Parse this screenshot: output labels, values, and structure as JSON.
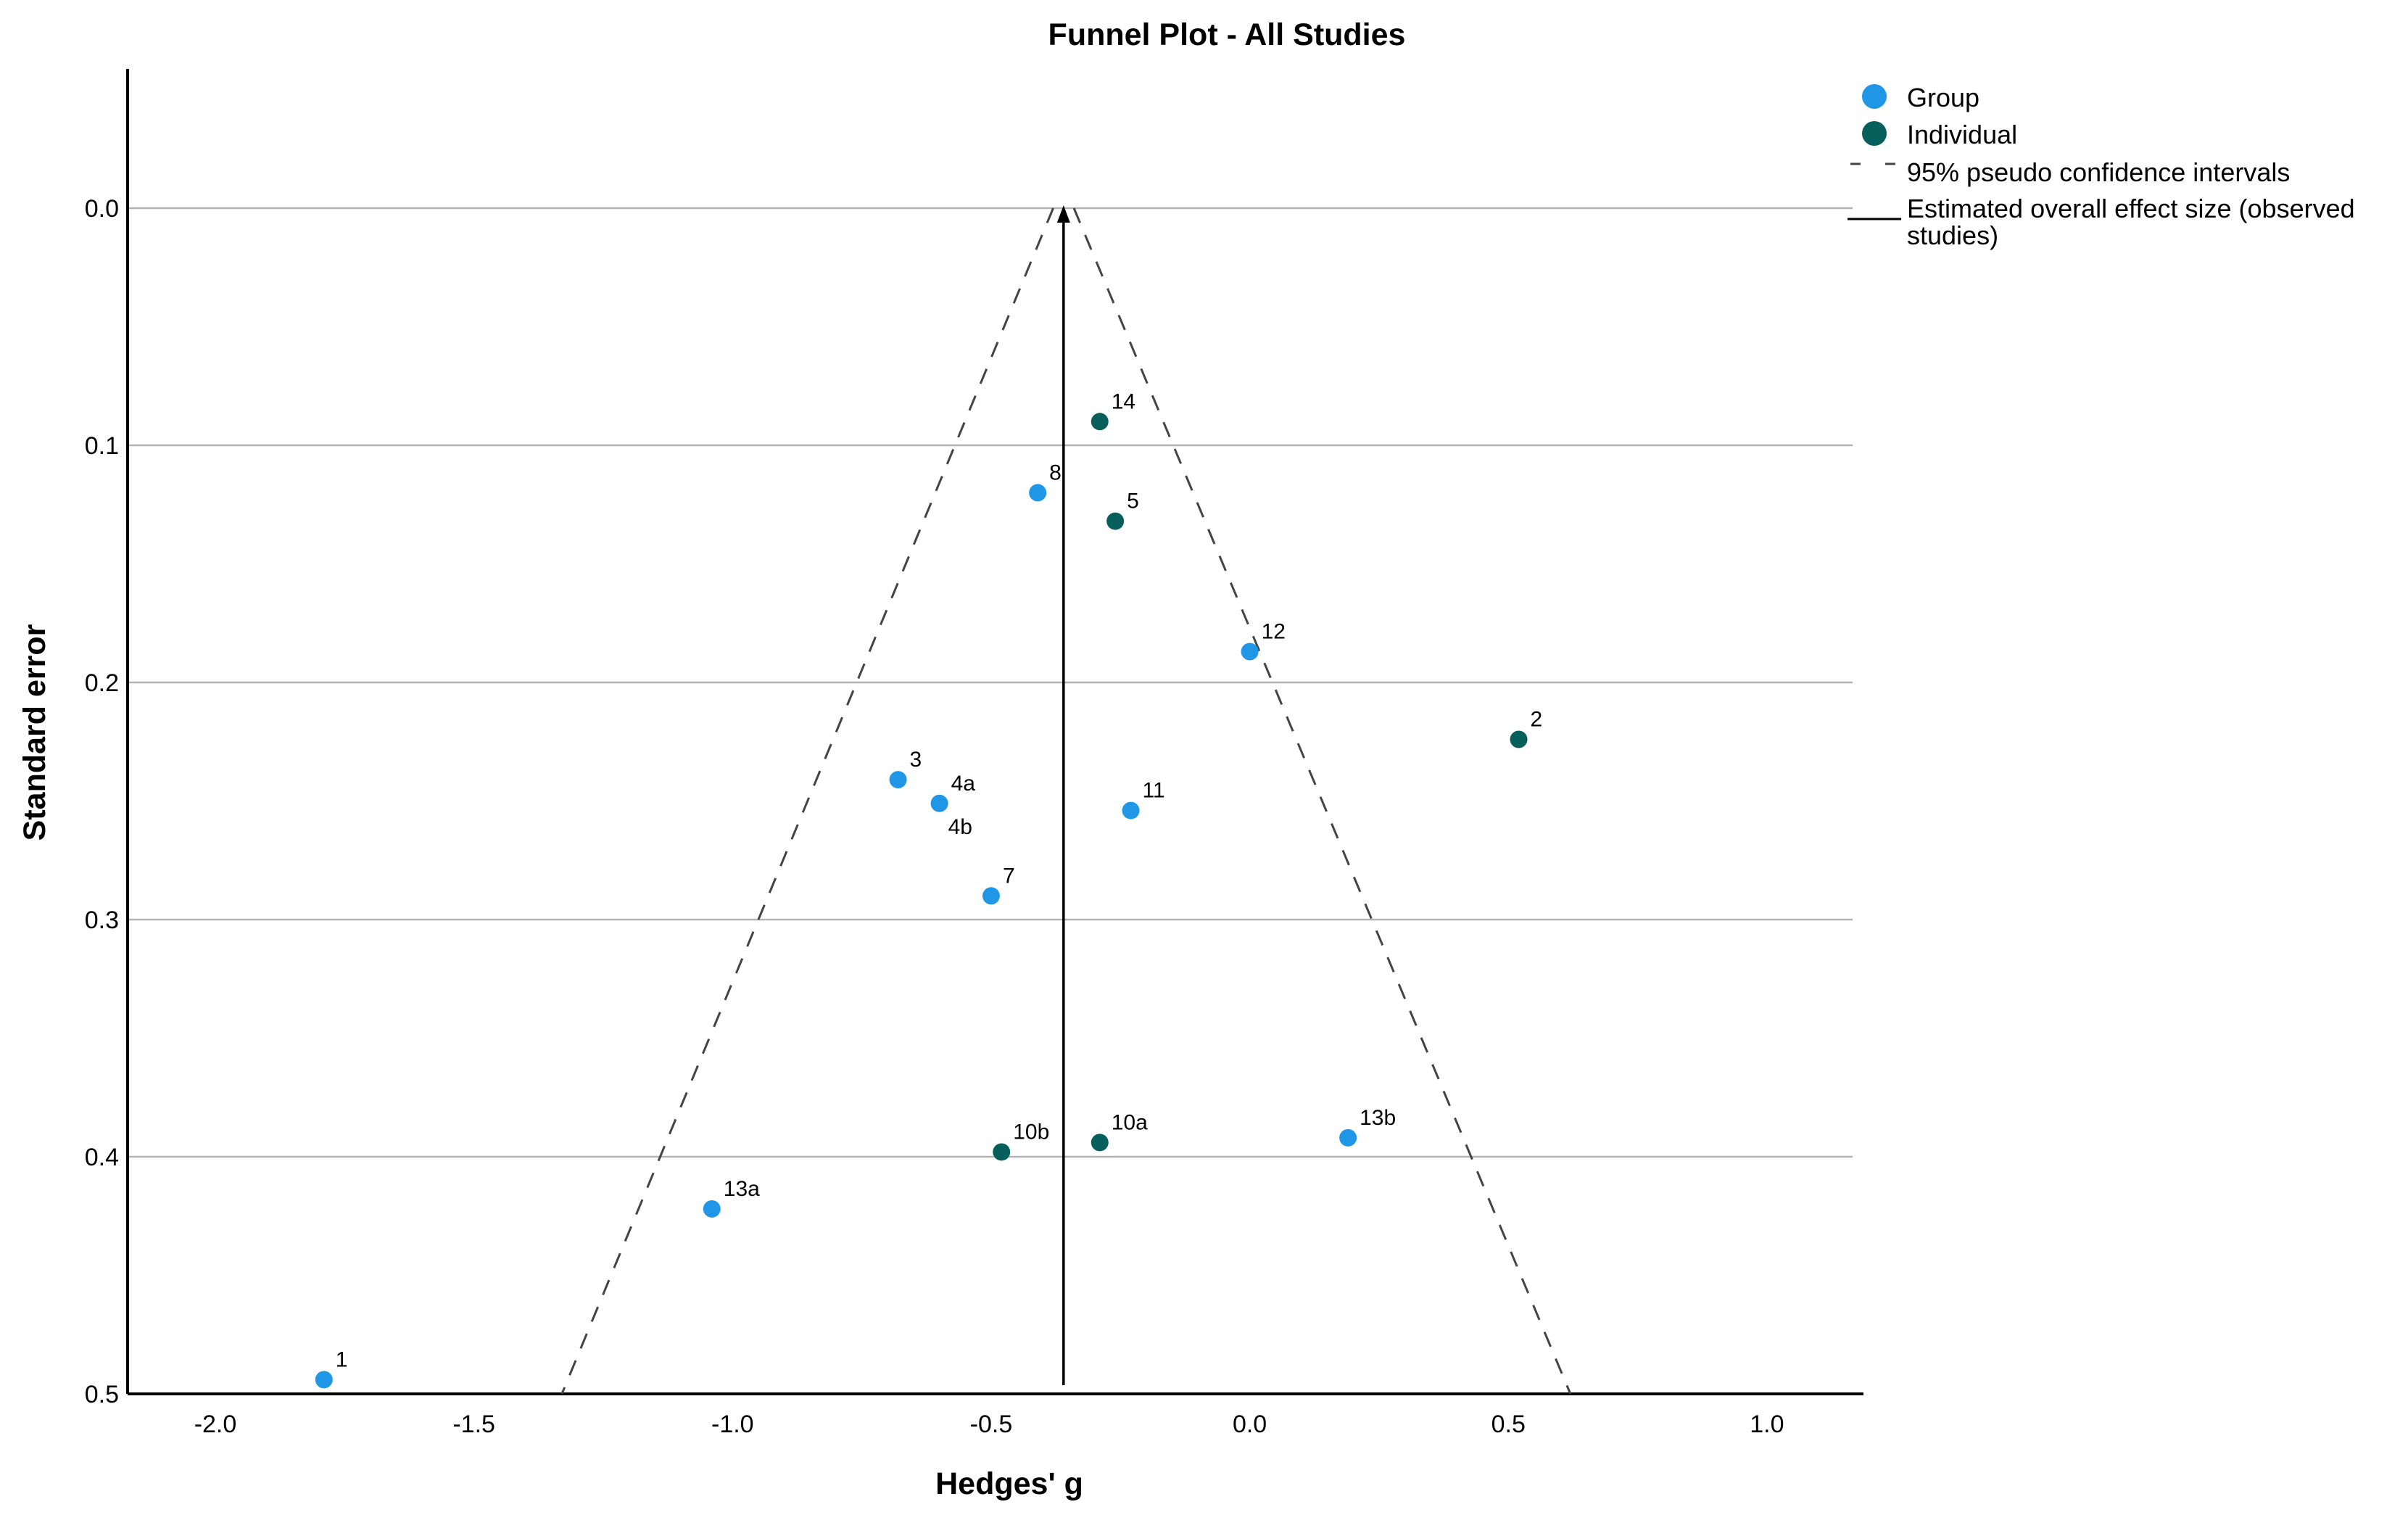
{
  "chart_data": {
    "type": "scatter",
    "title": "Funnel Plot - All Studies",
    "xlabel": "Hedges' g",
    "ylabel": "Standard error",
    "xlim": [
      -2.2,
      1.2
    ],
    "ylim": [
      0.5,
      -0.06
    ],
    "y_inverted": true,
    "x_ticks": [
      "-2.0",
      "-1.5",
      "-1.0",
      "-0.5",
      "0.0",
      "0.5",
      "1.0"
    ],
    "x_tick_values": [
      -2.0,
      -1.5,
      -1.0,
      -0.5,
      0.0,
      0.5,
      1.0
    ],
    "y_ticks": [
      "0.0",
      "0.1",
      "0.2",
      "0.3",
      "0.4",
      "0.5"
    ],
    "y_tick_values": [
      0.0,
      0.1,
      0.2,
      0.3,
      0.4,
      0.5
    ],
    "grid": "horizontal",
    "legend_position": "top-right",
    "colors": {
      "group": "#1f97e6",
      "individual": "#065f5a",
      "ci_line": "#444444",
      "effect_line": "#000000",
      "gridline": "#b3b3b3",
      "axis": "#000000"
    },
    "series": [
      {
        "name": "Group",
        "color": "#1f97e6",
        "points": [
          {
            "label": "8",
            "x": -0.41,
            "y": 0.12
          },
          {
            "label": "12",
            "x": 0.0,
            "y": 0.187
          },
          {
            "label": "3",
            "x": -0.68,
            "y": 0.241
          },
          {
            "label": "4a",
            "x": -0.6,
            "y": 0.251
          },
          {
            "label": "11",
            "x": -0.23,
            "y": 0.254
          },
          {
            "label": "7",
            "x": -0.5,
            "y": 0.29
          },
          {
            "label": "13b",
            "x": 0.19,
            "y": 0.392
          },
          {
            "label": "13a",
            "x": -1.04,
            "y": 0.422
          },
          {
            "label": "1",
            "x": -1.79,
            "y": 0.494
          }
        ]
      },
      {
        "name": "Individual",
        "color": "#065f5a",
        "points": [
          {
            "label": "14",
            "x": -0.29,
            "y": 0.09
          },
          {
            "label": "5",
            "x": -0.26,
            "y": 0.132
          },
          {
            "label": "2",
            "x": 0.52,
            "y": 0.224
          },
          {
            "label": "10b",
            "x": -0.48,
            "y": 0.398
          },
          {
            "label": "10a",
            "x": -0.29,
            "y": 0.394
          }
        ]
      }
    ],
    "extra_labels": [
      {
        "label": "4b",
        "x": -0.6,
        "y": 0.251
      }
    ],
    "overall_effect": -0.36,
    "ci_lines": [
      {
        "points": [
          [
            -0.38,
            0.0
          ],
          [
            -1.33,
            0.5
          ]
        ]
      },
      {
        "points": [
          [
            -0.34,
            0.0
          ],
          [
            0.62,
            0.5
          ]
        ]
      }
    ],
    "legend": [
      {
        "label": "Group",
        "kind": "marker",
        "color": "#1f97e6"
      },
      {
        "label": "Individual",
        "kind": "marker",
        "color": "#065f5a"
      },
      {
        "label": "95% pseudo confidence intervals",
        "kind": "dashed",
        "color": "#444444"
      },
      {
        "label": "Estimated overall effect size (observed",
        "label2": "studies)",
        "kind": "solid",
        "color": "#000000"
      }
    ]
  }
}
